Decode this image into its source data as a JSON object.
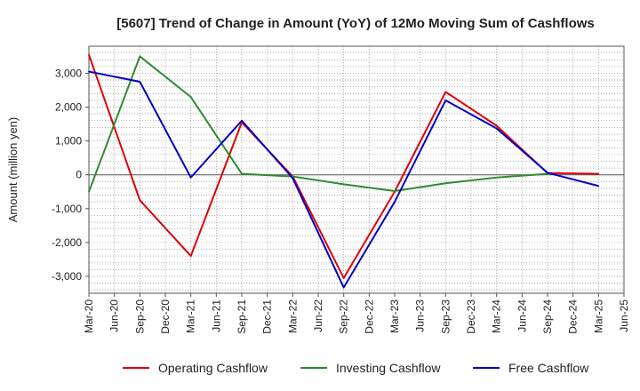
{
  "chart_data": {
    "type": "line",
    "title": "[5607]  Trend of Change in Amount (YoY) of 12Mo Moving Sum of Cashflows",
    "xlabel": "",
    "ylabel": "Amount (million yen)",
    "ylim": [
      -3500,
      3800
    ],
    "yticks": [
      3000,
      2000,
      1000,
      0,
      -1000,
      -2000,
      -3000
    ],
    "ytick_labels": [
      "3,000",
      "2,000",
      "1,000",
      "0",
      "-1,000",
      "-2,000",
      "-3,000"
    ],
    "categories": [
      "Mar-20",
      "Jun-20",
      "Sep-20",
      "Dec-20",
      "Mar-21",
      "Jun-21",
      "Sep-21",
      "Dec-21",
      "Mar-22",
      "Jun-22",
      "Sep-22",
      "Dec-22",
      "Mar-23",
      "Jun-23",
      "Sep-23",
      "Dec-23",
      "Mar-24",
      "Jun-24",
      "Sep-24",
      "Dec-24",
      "Mar-25",
      "Jun-25"
    ],
    "grid": true,
    "legend_position": "bottom",
    "series": [
      {
        "name": "Operating Cashflow",
        "color": "#e00000",
        "values": [
          3550,
          null,
          -750,
          null,
          -2400,
          null,
          1550,
          null,
          -50,
          null,
          -3050,
          null,
          -500,
          null,
          2450,
          null,
          1450,
          null,
          50,
          null,
          30,
          null
        ]
      },
      {
        "name": "Investing Cashflow",
        "color": "#2e8b2e",
        "values": [
          -500,
          null,
          3500,
          null,
          2300,
          null,
          30,
          null,
          -50,
          null,
          -280,
          null,
          -480,
          null,
          -250,
          null,
          -80,
          null,
          30,
          null,
          null,
          null
        ]
      },
      {
        "name": "Free Cashflow",
        "color": "#0000cc",
        "values": [
          3050,
          null,
          2750,
          null,
          -80,
          null,
          1600,
          null,
          -100,
          null,
          -3330,
          null,
          -800,
          null,
          2200,
          null,
          1370,
          null,
          60,
          null,
          -330,
          null
        ]
      }
    ]
  }
}
